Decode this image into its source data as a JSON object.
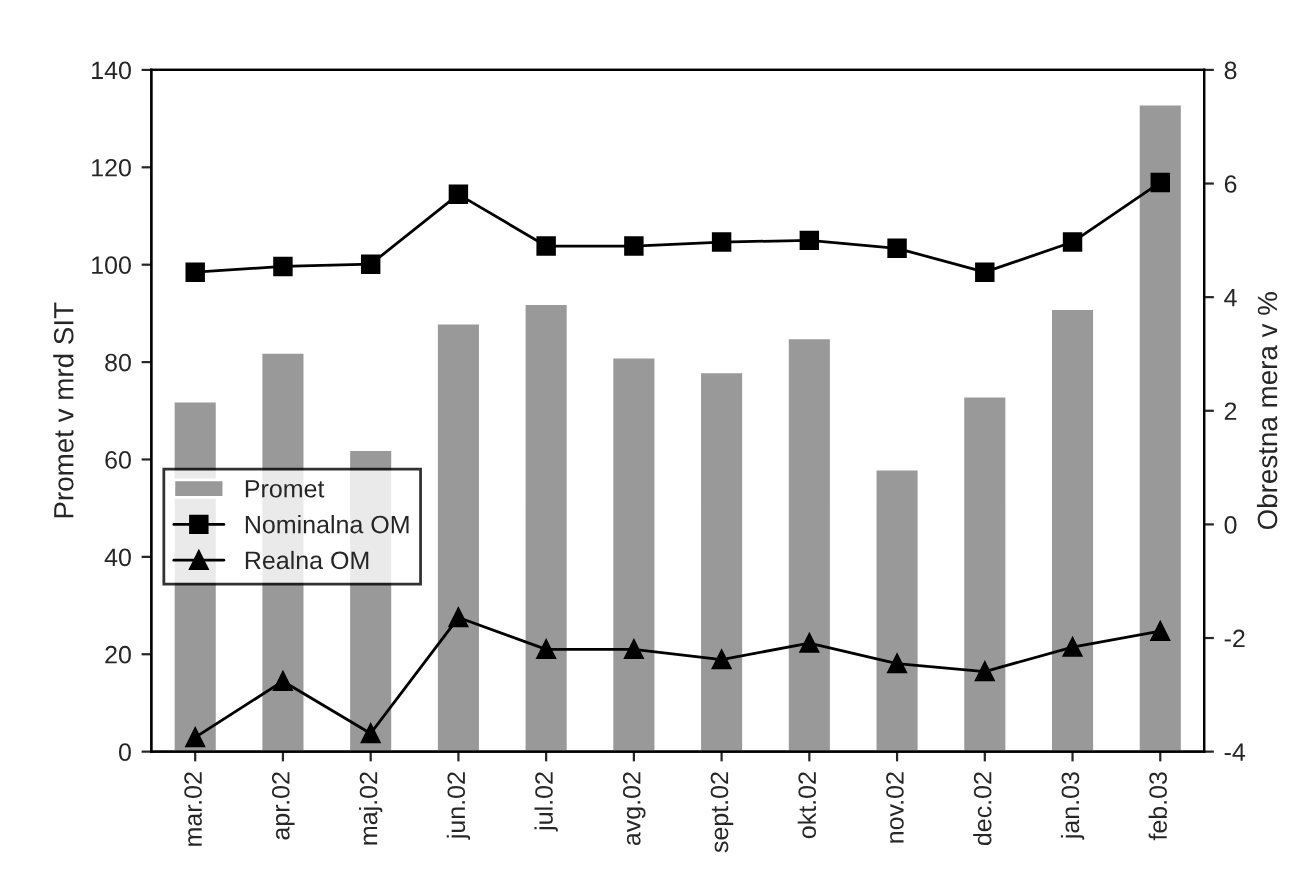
{
  "chart_data": {
    "type": "bar",
    "ylabel": "Promet v mrd SIT",
    "y2label": "Obrestna mera v %",
    "categories": [
      "mar.02",
      "apr.02",
      "maj.02",
      "jun.02",
      "jul.02",
      "avg.02",
      "sept.02",
      "okt.02",
      "nov.02",
      "dec.02",
      "jan.03",
      "feb.03"
    ],
    "series": [
      {
        "name": "Promet",
        "color": "#999999",
        "values": [
          72,
          82,
          62,
          88,
          92,
          81,
          78,
          85,
          58,
          73,
          91,
          133
        ]
      },
      {
        "name": "Nominalna OM",
        "type": "line",
        "axis": "y2",
        "color": "#000000",
        "marker": "square",
        "values": [
          4.44,
          4.54,
          4.58,
          5.81,
          4.9,
          4.9,
          4.97,
          5.0,
          4.86,
          4.44,
          4.97,
          6.02
        ]
      },
      {
        "name": "Realna OM",
        "type": "line",
        "axis": "y2",
        "color": "#000000",
        "marker": "triangle",
        "values": [
          -3.75,
          -2.76,
          -3.68,
          -1.64,
          -2.2,
          -2.2,
          -2.38,
          -2.09,
          -2.45,
          -2.59,
          -2.16,
          -1.88
        ]
      }
    ],
    "ylim": [
      0,
      140
    ],
    "yticks": [
      0,
      20,
      40,
      60,
      80,
      100,
      120,
      140
    ],
    "y2lim": [
      -4,
      8
    ],
    "y2ticks": [
      -4,
      -2,
      0,
      2,
      4,
      6,
      8
    ],
    "grid": false,
    "legend": "center left"
  }
}
